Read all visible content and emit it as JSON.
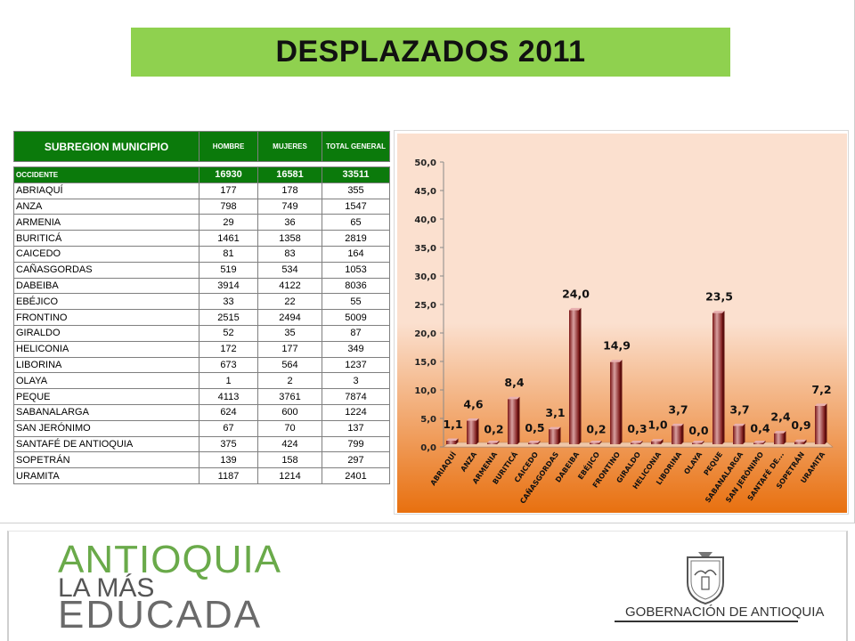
{
  "title": "DESPLAZADOS 2011",
  "table": {
    "headers": [
      "SUBREGION MUNICIPIO",
      "HOMBRE",
      "MUJERES",
      "TOTAL GENERAL"
    ],
    "group": {
      "name": "OCCIDENTE",
      "hombre": "16930",
      "mujeres": "16581",
      "total": "33511"
    },
    "rows": [
      [
        "ABRIAQUÍ",
        "177",
        "178",
        "355"
      ],
      [
        "ANZA",
        "798",
        "749",
        "1547"
      ],
      [
        "ARMENIA",
        "29",
        "36",
        "65"
      ],
      [
        "BURITICÁ",
        "1461",
        "1358",
        "2819"
      ],
      [
        "CAICEDO",
        "81",
        "83",
        "164"
      ],
      [
        "CAÑASGORDAS",
        "519",
        "534",
        "1053"
      ],
      [
        "DABEIBA",
        "3914",
        "4122",
        "8036"
      ],
      [
        "EBÉJICO",
        "33",
        "22",
        "55"
      ],
      [
        "FRONTINO",
        "2515",
        "2494",
        "5009"
      ],
      [
        "GIRALDO",
        "52",
        "35",
        "87"
      ],
      [
        "HELICONIA",
        "172",
        "177",
        "349"
      ],
      [
        "LIBORINA",
        "673",
        "564",
        "1237"
      ],
      [
        "OLAYA",
        "1",
        "2",
        "3"
      ],
      [
        "PEQUE",
        "4113",
        "3761",
        "7874"
      ],
      [
        "SABANALARGA",
        "624",
        "600",
        "1224"
      ],
      [
        "SAN JERÓNIMO",
        "67",
        "70",
        "137"
      ],
      [
        "SANTAFÉ DE ANTIOQUIA",
        "375",
        "424",
        "799"
      ],
      [
        "SOPETRÁN",
        "139",
        "158",
        "297"
      ],
      [
        "URAMITA",
        "1187",
        "1214",
        "2401"
      ]
    ]
  },
  "chart_data": {
    "type": "bar",
    "categories": [
      "ABRIAQUÍ",
      "ANZA",
      "ARMENIA",
      "BURITICÁ",
      "CAICEDO",
      "CAÑASGORDAS",
      "DABEIBA",
      "EBÉJICO",
      "FRONTINO",
      "GIRALDO",
      "HELICONIA",
      "LIBORINA",
      "OLAYA",
      "PEQUE",
      "SABANALARGA",
      "SAN JERÓNIMO",
      "SANTAFÉ DE...",
      "SOPETRÁN",
      "URAMITA"
    ],
    "values": [
      1.1,
      4.6,
      0.2,
      8.4,
      0.5,
      3.1,
      24.0,
      0.2,
      14.9,
      0.3,
      1.0,
      3.7,
      0.0,
      23.5,
      3.7,
      0.4,
      2.4,
      0.9,
      7.2
    ],
    "data_labels": [
      "1,1",
      "4,6",
      "0,2",
      "8,4",
      "0,5",
      "3,1",
      "24,0",
      "0,2",
      "14,9",
      "0,3",
      "1,0",
      "3,7",
      "0,0",
      "23,5",
      "3,7",
      "0,4",
      "2,4",
      "0,9",
      "7,2"
    ],
    "yticks": [
      "0,0",
      "5,0",
      "10,0",
      "15,0",
      "20,0",
      "25,0",
      "30,0",
      "35,0",
      "40,0",
      "45,0",
      "50,0"
    ],
    "ylim": [
      0,
      50
    ],
    "grid": false,
    "legend": "none",
    "colors": {
      "bar_dark": "#7a1616",
      "bar_light": "#d9a0a0",
      "background_top": "#fbe0cf",
      "background_bottom": "#e8700f"
    }
  },
  "footer": {
    "logo_line1": "ANTIOQUIA",
    "logo_line2": "LA MÁS",
    "logo_line3": "EDUCADA",
    "gov_name": "GOBERNACIÓN DE ANTIOQUIA"
  }
}
